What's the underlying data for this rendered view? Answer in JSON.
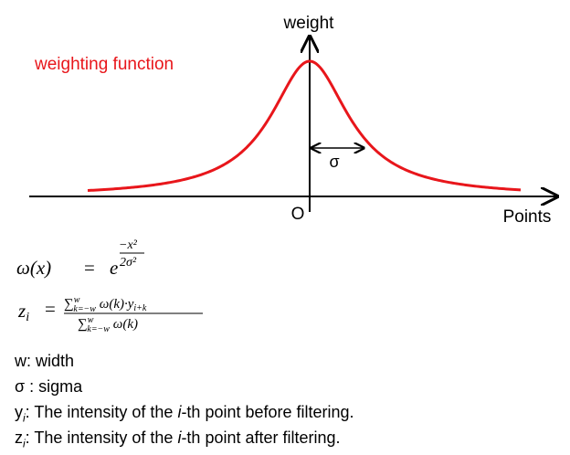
{
  "diagram": {
    "y_axis_label": "weight",
    "x_axis_label": "Points",
    "origin_label": "O",
    "curve_label": "weighting function",
    "sigma_label": "σ",
    "colors": {
      "curve": "#e8161b",
      "axis": "#000000",
      "curve_label": "#e8161b"
    }
  },
  "formula": {
    "omega_lhs": "ω(x)",
    "equals": "=",
    "base": "e",
    "exp_numerator": "−x²",
    "exp_denominator": "2σ²",
    "z_lhs": "zi",
    "z_num": "∑ ω(k)·yi+k",
    "z_den": "∑ ω(k)",
    "sum_upper": "w",
    "sum_lower": "k=−w"
  },
  "legend": {
    "width_prefix": "w",
    "width_text": ": width",
    "sigma_prefix": "σ",
    "sigma_text": " : sigma",
    "y_sub": "i",
    "y_prefix": "y",
    "y_text_before": ": The intensity of the ",
    "y_italic": "i",
    "y_text_after": "-th point before filtering.",
    "z_prefix": "z",
    "z_sub": "i",
    "z_text_before": ": The intensity of the ",
    "z_italic": "i",
    "z_text_after": "-th point after filtering."
  }
}
